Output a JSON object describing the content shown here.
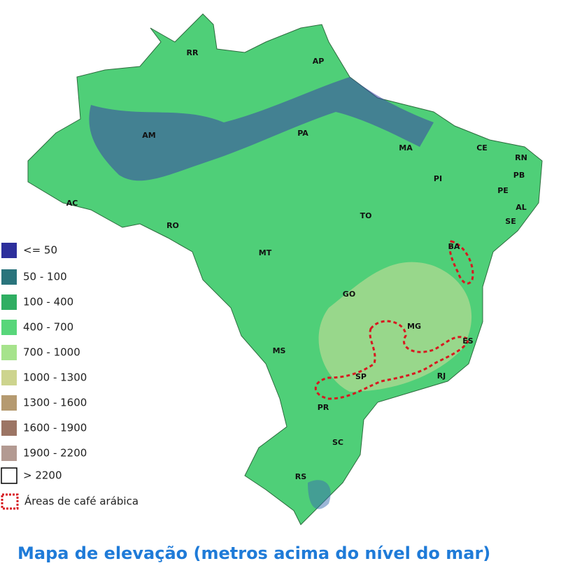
{
  "map": {
    "states": [
      "RR",
      "AP",
      "AM",
      "PA",
      "MA",
      "CE",
      "RN",
      "PB",
      "PI",
      "PE",
      "AL",
      "SE",
      "AC",
      "RO",
      "TO",
      "MT",
      "BA",
      "GO",
      "MG",
      "ES",
      "MS",
      "SP",
      "RJ",
      "PR",
      "SC",
      "RS"
    ]
  },
  "legend": [
    {
      "label": "<= 50",
      "color": "#2d2f9c"
    },
    {
      "label": "50 - 100",
      "color": "#2a747c"
    },
    {
      "label": "100 - 400",
      "color": "#2fae62"
    },
    {
      "label": "400 - 700",
      "color": "#58d67a"
    },
    {
      "label": "700 - 1000",
      "color": "#a6e38c"
    },
    {
      "label": "1000 - 1300",
      "color": "#cdd48e"
    },
    {
      "label": "1300 - 1600",
      "color": "#b59a70"
    },
    {
      "label": "1600 - 1900",
      "color": "#9c7564"
    },
    {
      "label": "1900 - 2200",
      "color": "#b39a92"
    },
    {
      "label": "> 2200",
      "color": "#ffffff"
    },
    {
      "label": "Áreas de café arábica",
      "color": "#d71920"
    }
  ],
  "title": "Mapa de elevação (metros acima do nível do mar)"
}
